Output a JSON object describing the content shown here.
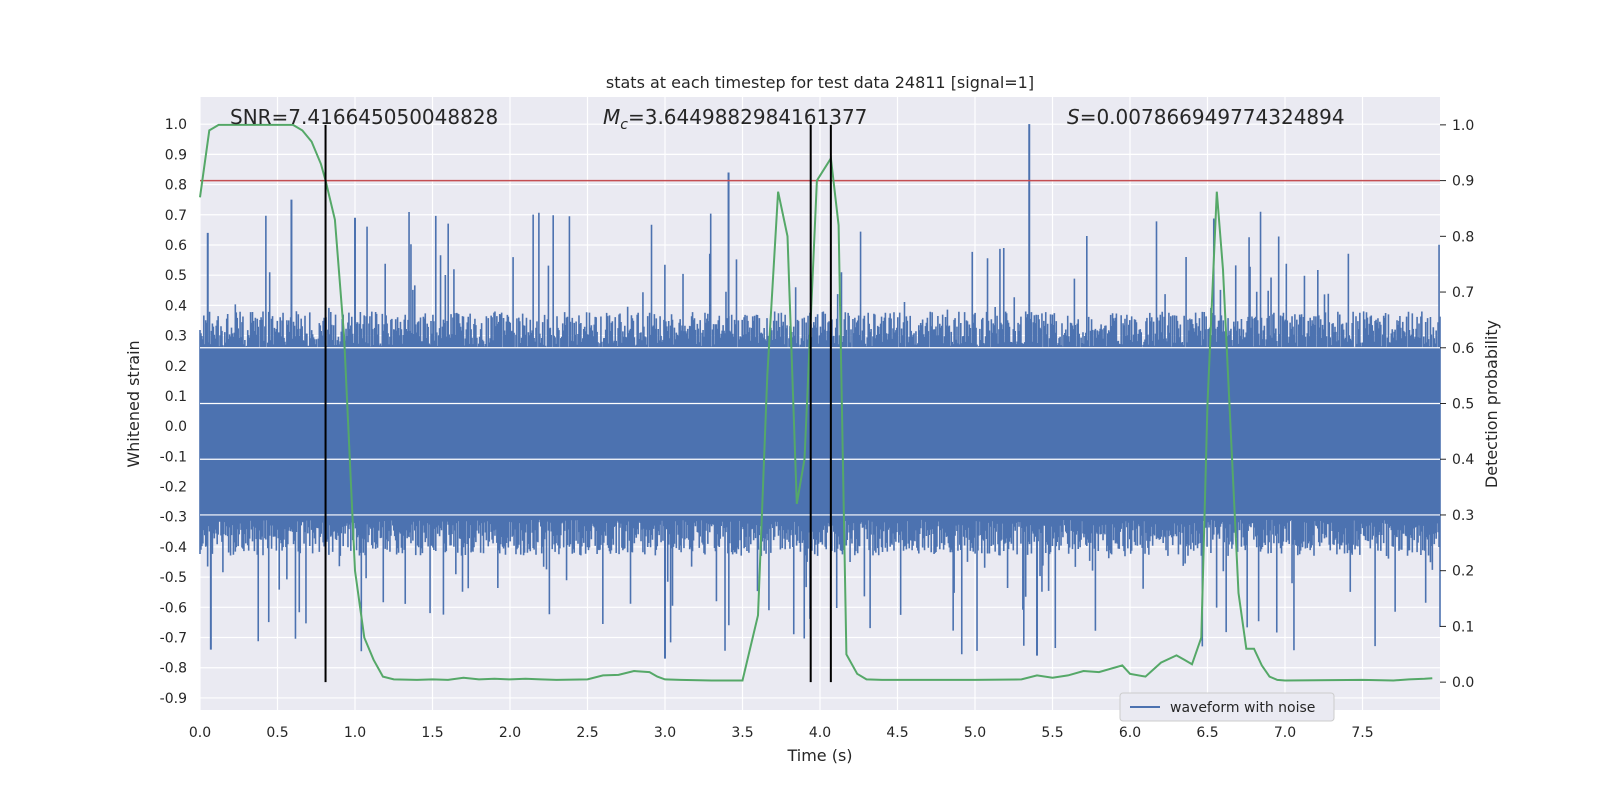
{
  "chart_data": {
    "type": "line",
    "title": "stats at each timestep for test data 24811 [signal=1]",
    "xlabel": "Time (s)",
    "ylabel": "Whitened strain",
    "ylabel_right": "Detection probability",
    "xlim": [
      0,
      8.0
    ],
    "ylim": [
      -0.94,
      1.09
    ],
    "ylim_right": [
      -0.05,
      1.05
    ],
    "x_ticks": [
      0.0,
      0.5,
      1.0,
      1.5,
      2.0,
      2.5,
      3.0,
      3.5,
      4.0,
      4.5,
      5.0,
      5.5,
      6.0,
      6.5,
      7.0,
      7.5
    ],
    "x_tick_labels": [
      "0.0",
      "0.5",
      "1.0",
      "1.5",
      "2.0",
      "2.5",
      "3.0",
      "3.5",
      "4.0",
      "4.5",
      "5.0",
      "5.5",
      "6.0",
      "6.5",
      "7.0",
      "7.5"
    ],
    "y_ticks": [
      1.0,
      0.9,
      0.8,
      0.7,
      0.6,
      0.5,
      0.4,
      0.3,
      0.2,
      0.1,
      0.0,
      -0.1,
      -0.2,
      -0.3,
      -0.4,
      -0.5,
      -0.6,
      -0.7,
      -0.8,
      -0.9
    ],
    "y_tick_labels": [
      "1.0",
      "0.9",
      "0.8",
      "0.7",
      "0.6",
      "0.5",
      "0.4",
      "0.3",
      "0.2",
      "0.1",
      "0.0",
      "-0.1",
      "-0.2",
      "-0.3",
      "-0.4",
      "-0.5",
      "-0.6",
      "-0.7",
      "-0.8",
      "-0.9"
    ],
    "y_right_ticks": [
      1.0,
      0.9,
      0.8,
      0.7,
      0.6,
      0.5,
      0.4,
      0.3,
      0.2,
      0.1,
      0.0
    ],
    "y_right_tick_labels": [
      "1.0",
      "0.9",
      "0.8",
      "0.7",
      "0.6",
      "0.5",
      "0.4",
      "0.3",
      "0.2",
      "0.1",
      "0.0"
    ],
    "grid": true,
    "legend": {
      "placement": "lower-right",
      "entries": [
        "waveform with noise"
      ]
    },
    "annotations": {
      "snr": "SNR=7.416645050048828",
      "mc_symbol": "M",
      "mc_sub": "c",
      "mc_value": "=3.6449882984161377",
      "s_symbol": "S",
      "s_value": "=0.007866949774324894"
    },
    "threshold": {
      "axis": "right",
      "value": 0.9,
      "color": "#c44e52"
    },
    "vertical_lines": {
      "x": [
        0.81,
        3.94,
        4.07
      ],
      "color": "#000000"
    },
    "colors": {
      "waveform": "#4c72b0",
      "probability": "#55a868",
      "background": "#eaeaf2",
      "grid": "#ffffff"
    },
    "series": [
      {
        "name": "waveform with noise",
        "axis": "left",
        "kind": "noise-band",
        "envelope": [
          0.26,
          -0.31
        ],
        "peaks": [
          {
            "x": 0.05,
            "y": 0.64
          },
          {
            "x": 0.07,
            "y": -0.74
          },
          {
            "x": 0.59,
            "y": 0.75
          },
          {
            "x": 1.0,
            "y": 0.69
          },
          {
            "x": 3.41,
            "y": 0.84
          },
          {
            "x": 3.0,
            "y": -0.77
          },
          {
            "x": 5.35,
            "y": 1.0
          },
          {
            "x": 5.4,
            "y": -0.76
          }
        ]
      },
      {
        "name": "Detection probability",
        "axis": "right",
        "x": [
          0.0,
          0.06,
          0.12,
          0.2,
          0.3,
          0.4,
          0.5,
          0.6,
          0.66,
          0.72,
          0.78,
          0.81,
          0.87,
          0.93,
          1.0,
          1.06,
          1.12,
          1.18,
          1.25,
          1.4,
          1.5,
          1.6,
          1.7,
          1.8,
          1.9,
          2.0,
          2.1,
          2.2,
          2.3,
          2.5,
          2.6,
          2.7,
          2.8,
          2.9,
          2.95,
          3.0,
          3.1,
          3.3,
          3.5,
          3.6,
          3.66,
          3.73,
          3.79,
          3.85,
          3.9,
          3.98,
          4.07,
          4.12,
          4.17,
          4.24,
          4.3,
          4.4,
          5.0,
          5.3,
          5.4,
          5.5,
          5.6,
          5.7,
          5.8,
          5.95,
          6.0,
          6.1,
          6.2,
          6.3,
          6.35,
          6.4,
          6.46,
          6.5,
          6.56,
          6.6,
          6.7,
          6.75,
          6.8,
          6.85,
          6.9,
          6.95,
          7.0,
          7.5,
          7.7,
          7.8,
          7.9,
          7.95
        ],
        "values": [
          0.87,
          0.99,
          1.0,
          1.0,
          1.0,
          1.0,
          1.0,
          1.0,
          0.99,
          0.97,
          0.93,
          0.9,
          0.83,
          0.62,
          0.2,
          0.08,
          0.04,
          0.01,
          0.005,
          0.004,
          0.005,
          0.004,
          0.008,
          0.005,
          0.006,
          0.005,
          0.006,
          0.005,
          0.004,
          0.005,
          0.012,
          0.013,
          0.02,
          0.018,
          0.01,
          0.005,
          0.004,
          0.003,
          0.003,
          0.12,
          0.55,
          0.88,
          0.8,
          0.32,
          0.4,
          0.9,
          0.94,
          0.82,
          0.05,
          0.015,
          0.005,
          0.004,
          0.004,
          0.005,
          0.012,
          0.008,
          0.012,
          0.02,
          0.018,
          0.03,
          0.015,
          0.01,
          0.035,
          0.048,
          0.04,
          0.032,
          0.08,
          0.5,
          0.88,
          0.74,
          0.16,
          0.06,
          0.06,
          0.03,
          0.01,
          0.004,
          0.003,
          0.004,
          0.003,
          0.005,
          0.006,
          0.007
        ]
      }
    ]
  }
}
